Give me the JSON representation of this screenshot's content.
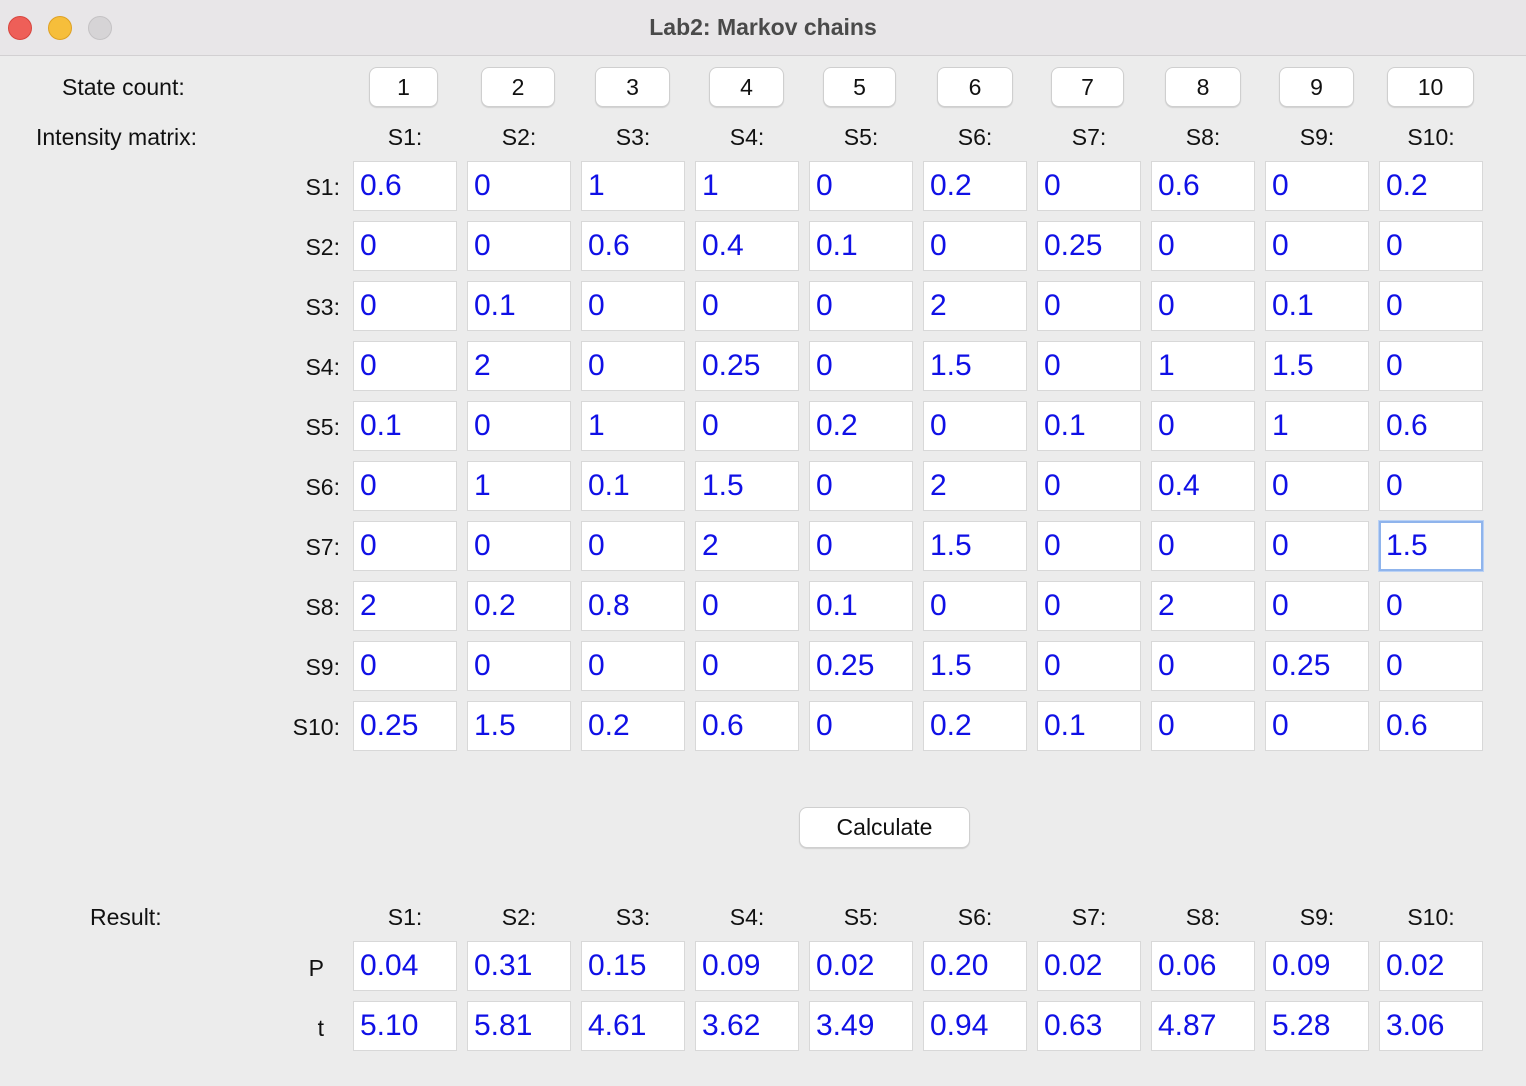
{
  "window": {
    "title": "Lab2: Markov chains"
  },
  "state_count": {
    "label": "State count:",
    "buttons": [
      "1",
      "2",
      "3",
      "4",
      "5",
      "6",
      "7",
      "8",
      "9",
      "10"
    ]
  },
  "intensity": {
    "label": "Intensity matrix:",
    "col_headers": [
      "S1:",
      "S2:",
      "S3:",
      "S4:",
      "S5:",
      "S6:",
      "S7:",
      "S8:",
      "S9:",
      "S10:"
    ],
    "row_labels": [
      "S1:",
      "S2:",
      "S3:",
      "S4:",
      "S5:",
      "S6:",
      "S7:",
      "S8:",
      "S9:",
      "S10:"
    ],
    "rows": [
      [
        "0.6",
        "0",
        "1",
        "1",
        "0",
        "0.2",
        "0",
        "0.6",
        "0",
        "0.2"
      ],
      [
        "0",
        "0",
        "0.6",
        "0.4",
        "0.1",
        "0",
        "0.25",
        "0",
        "0",
        "0"
      ],
      [
        "0",
        "0.1",
        "0",
        "0",
        "0",
        "2",
        "0",
        "0",
        "0.1",
        "0"
      ],
      [
        "0",
        "2",
        "0",
        "0.25",
        "0",
        "1.5",
        "0",
        "1",
        "1.5",
        "0"
      ],
      [
        "0.1",
        "0",
        "1",
        "0",
        "0.2",
        "0",
        "0.1",
        "0",
        "1",
        "0.6"
      ],
      [
        "0",
        "1",
        "0.1",
        "1.5",
        "0",
        "2",
        "0",
        "0.4",
        "0",
        "0"
      ],
      [
        "0",
        "0",
        "0",
        "2",
        "0",
        "1.5",
        "0",
        "0",
        "0",
        "1.5"
      ],
      [
        "2",
        "0.2",
        "0.8",
        "0",
        "0.1",
        "0",
        "0",
        "2",
        "0",
        "0"
      ],
      [
        "0",
        "0",
        "0",
        "0",
        "0.25",
        "1.5",
        "0",
        "0",
        "0.25",
        "0"
      ],
      [
        "0.25",
        "1.5",
        "0.2",
        "0.6",
        "0",
        "0.2",
        "0.1",
        "0",
        "0",
        "0.6"
      ]
    ],
    "focused_cell": "S7,S10"
  },
  "calculate_label": "Calculate",
  "result": {
    "label": "Result:",
    "col_headers": [
      "S1:",
      "S2:",
      "S3:",
      "S4:",
      "S5:",
      "S6:",
      "S7:",
      "S8:",
      "S9:",
      "S10:"
    ],
    "row_labels": [
      "P",
      "t"
    ],
    "rows": [
      [
        "0.04",
        "0.31",
        "0.15",
        "0.09",
        "0.02",
        "0.20",
        "0.02",
        "0.06",
        "0.09",
        "0.02"
      ],
      [
        "5.10",
        "5.81",
        "4.61",
        "3.62",
        "3.49",
        "0.94",
        "0.63",
        "4.87",
        "5.28",
        "3.06"
      ]
    ]
  },
  "colors": {
    "value_text": "#1010e6",
    "background": "#ececec",
    "focus_ring": "#8fb4ec"
  }
}
